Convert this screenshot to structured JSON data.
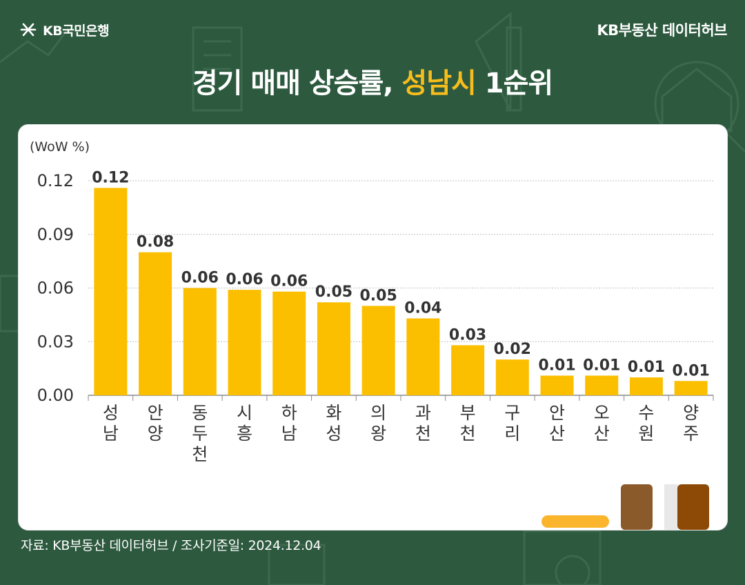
{
  "header": {
    "logo_text": "KB국민은행",
    "hub_text": "KB부동산  데이터허브",
    "title_part1": "경기 매매 상승률, ",
    "title_highlight": "성남시",
    "title_part2": " 1순위"
  },
  "footer": {
    "source": "자료: KB부동산 데이터허브 / 조사기준일: 2024.12.04"
  },
  "colors": {
    "background": "#2d5a3f",
    "bar": "#fbbf00",
    "highlight": "#f7bd1d",
    "brown_dark": "#8c4a06",
    "brown_mid": "#8b5a2b"
  },
  "chart_data": {
    "type": "bar",
    "unit_label": "(WoW %)",
    "categories": [
      [
        "성",
        "남"
      ],
      [
        "안",
        "양"
      ],
      [
        "동",
        "두",
        "천"
      ],
      [
        "시",
        "흥"
      ],
      [
        "하",
        "남"
      ],
      [
        "화",
        "성"
      ],
      [
        "의",
        "왕"
      ],
      [
        "과",
        "천"
      ],
      [
        "부",
        "천"
      ],
      [
        "구",
        "리"
      ],
      [
        "안",
        "산"
      ],
      [
        "오",
        "산"
      ],
      [
        "수",
        "원"
      ],
      [
        "양",
        "주"
      ]
    ],
    "values": [
      0.116,
      0.08,
      0.06,
      0.059,
      0.058,
      0.052,
      0.05,
      0.043,
      0.028,
      0.02,
      0.011,
      0.011,
      0.01,
      0.008
    ],
    "data_labels": [
      "0.12",
      "0.08",
      "0.06",
      "0.06",
      "0.06",
      "0.05",
      "0.05",
      "0.04",
      "0.03",
      "0.02",
      "0.01",
      "0.01",
      "0.01",
      "0.01"
    ],
    "yticks": [
      "0.00",
      "0.03",
      "0.06",
      "0.09",
      "0.12"
    ],
    "ylim": [
      0,
      0.12
    ],
    "grid": true
  }
}
